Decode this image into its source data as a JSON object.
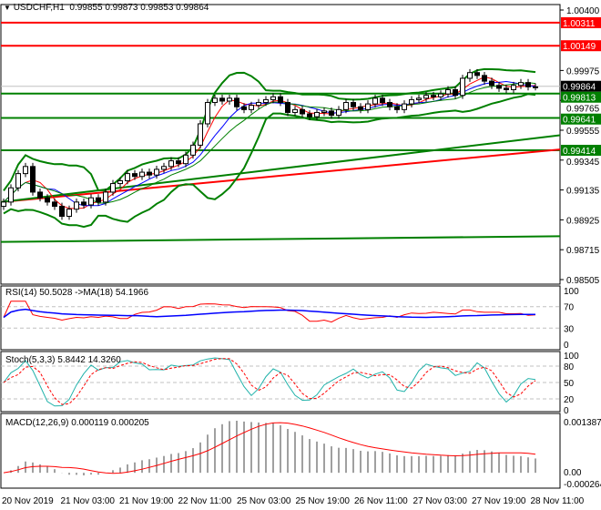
{
  "header": {
    "symbol": "USDCHF,H1",
    "ohlc": "0.99855 0.99873 0.99853 0.99864"
  },
  "price_axis": {
    "ticks": [
      "1.00400",
      "0.99975",
      "0.99765",
      "0.99555",
      "0.99345",
      "0.99135",
      "0.98925",
      "0.98715",
      "0.98505"
    ],
    "current": "0.99864"
  },
  "levels": [
    {
      "label": "1.00311",
      "value": 1.00311,
      "color": "#ff0000"
    },
    {
      "label": "1.00149",
      "value": 1.00149,
      "color": "#ff0000"
    },
    {
      "label": "0.99813",
      "value": 0.99813,
      "color": "#008000"
    },
    {
      "label": "0.99641",
      "value": 0.99641,
      "color": "#008000"
    },
    {
      "label": "0.99414",
      "value": 0.99414,
      "color": "#008000"
    }
  ],
  "rsi": {
    "title": "RSI(14) 50.5028  ->MA(18) 54.1966",
    "ticks": [
      "100",
      "70",
      "30",
      "0"
    ]
  },
  "stoch": {
    "title": "Stoch(5,3,3) 5.8442 14.3260",
    "ticks": [
      "100",
      "80",
      "50",
      "20",
      "0"
    ]
  },
  "macd": {
    "title": "MACD(12,26,9) 0.000119 0.000205",
    "ticks": [
      "0.001387",
      "0.00",
      "-0.000264"
    ]
  },
  "time_axis": [
    "20 Nov 2019",
    "21 Nov 03:00",
    "21 Nov 19:00",
    "22 Nov 11:00",
    "25 Nov 03:00",
    "25 Nov 19:00",
    "26 Nov 11:00",
    "27 Nov 03:00",
    "27 Nov 19:00",
    "28 Nov 11:00"
  ],
  "chart_data": {
    "type": "candlestick",
    "closes": [
      0.9905,
      0.9915,
      0.9925,
      0.993,
      0.9912,
      0.9908,
      0.9905,
      0.9902,
      0.9895,
      0.99,
      0.9905,
      0.9903,
      0.9908,
      0.9905,
      0.9912,
      0.9918,
      0.992,
      0.9925,
      0.9923,
      0.9926,
      0.9924,
      0.9928,
      0.993,
      0.9934,
      0.9932,
      0.9938,
      0.9945,
      0.996,
      0.9975,
      0.9978,
      0.9976,
      0.9978,
      0.9972,
      0.997,
      0.9973,
      0.9975,
      0.9977,
      0.9979,
      0.9975,
      0.9968,
      0.997,
      0.9967,
      0.9965,
      0.9968,
      0.9969,
      0.9966,
      0.997,
      0.9975,
      0.9972,
      0.997,
      0.9974,
      0.9978,
      0.9975,
      0.9972,
      0.997,
      0.9974,
      0.9977,
      0.9978,
      0.998,
      0.9979,
      0.9981,
      0.9984,
      0.998,
      0.9992,
      0.9996,
      0.9994,
      0.999,
      0.9987,
      0.9985,
      0.9984,
      0.9987,
      0.9989,
      0.9986,
      0.9986
    ],
    "ylim": [
      0.98505,
      1.004
    ],
    "trend_lines": [
      {
        "from": 0.9877,
        "to": 0.9881,
        "color": "#008000"
      },
      {
        "from": 0.9905,
        "to": 0.9942,
        "color": "#ff0000"
      },
      {
        "from": 0.9905,
        "to": 0.9952,
        "color": "#008000"
      }
    ]
  }
}
